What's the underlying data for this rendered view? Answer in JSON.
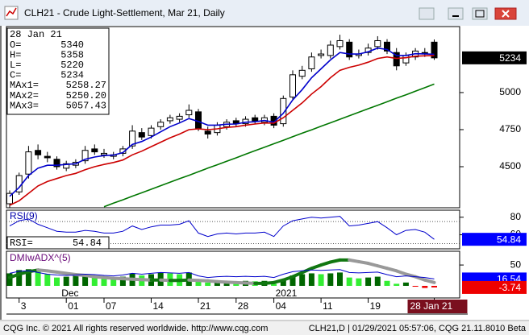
{
  "window": {
    "title": "CLH21 - Crude Light-Settlement, Mar 21, Daily"
  },
  "status": {
    "left": "CQG Inc. © 2021 All rights reserved worldwide. http://www.cqg.com",
    "right": "CLH21,D | 01/29/2021 05:57:06, CQG 21.11.8010 Beta"
  },
  "chart_data": [
    {
      "type": "candlestick",
      "categories": [
        null,
        "3",
        null,
        null,
        null,
        null,
        "01",
        null,
        null,
        null,
        "07",
        null,
        null,
        null,
        null,
        "14",
        null,
        null,
        null,
        null,
        "21",
        null,
        null,
        null,
        "28",
        null,
        null,
        null,
        "04",
        null,
        null,
        null,
        null,
        "11",
        null,
        null,
        null,
        null,
        "19",
        null,
        null,
        null,
        null,
        null,
        null,
        "28 Jan 21"
      ],
      "month_labels": [
        "Dec",
        "2021"
      ],
      "open": [
        4250,
        4330,
        4450,
        4610,
        4570,
        4550,
        4490,
        4510,
        4540,
        4620,
        4580,
        4570,
        4590,
        4640,
        4730,
        4710,
        4770,
        4810,
        4820,
        4850,
        4870,
        4740,
        4730,
        4770,
        4810,
        4790,
        4830,
        4800,
        4840,
        4790,
        4970,
        5110,
        5160,
        5250,
        5250,
        5310,
        5340,
        5250,
        5270,
        5310,
        5340,
        5270,
        5200,
        5240,
        5270,
        5340
      ],
      "high": [
        4340,
        4460,
        4640,
        4650,
        4600,
        4570,
        4540,
        4550,
        4640,
        4650,
        4620,
        4600,
        4640,
        4780,
        4760,
        4780,
        4820,
        4850,
        4860,
        4920,
        4890,
        4770,
        4800,
        4820,
        4830,
        4840,
        4850,
        4850,
        4860,
        4980,
        5150,
        5180,
        5270,
        5290,
        5350,
        5390,
        5360,
        5290,
        5330,
        5380,
        5360,
        5300,
        5270,
        5300,
        5300,
        5358
      ],
      "low": [
        4220,
        4310,
        4420,
        4550,
        4530,
        4480,
        4470,
        4490,
        4520,
        4580,
        4560,
        4550,
        4570,
        4620,
        4680,
        4690,
        4750,
        4790,
        4800,
        4830,
        4740,
        4690,
        4710,
        4750,
        4770,
        4770,
        4790,
        4780,
        4760,
        4770,
        4950,
        5090,
        5140,
        5230,
        5230,
        5290,
        5220,
        5230,
        5250,
        5290,
        5260,
        5150,
        5180,
        5220,
        5240,
        5220
      ],
      "close": [
        4320,
        4440,
        4600,
        4580,
        4560,
        4500,
        4520,
        4530,
        4610,
        4600,
        4590,
        4580,
        4620,
        4740,
        4700,
        4760,
        4800,
        4830,
        4840,
        4880,
        4760,
        4720,
        4780,
        4800,
        4790,
        4820,
        4810,
        4830,
        4780,
        4960,
        5120,
        5150,
        5240,
        5260,
        5320,
        5350,
        5240,
        5260,
        5300,
        5350,
        5280,
        5180,
        5250,
        5280,
        5260,
        5234
      ],
      "up_color": "#ffffff",
      "down_color": "#000000",
      "series": [
        {
          "name": "MAx1=",
          "color": "#0000cc",
          "values": [
            4300,
            4360,
            4440,
            4490,
            4510,
            4510,
            4515,
            4520,
            4550,
            4565,
            4575,
            4578,
            4595,
            4650,
            4670,
            4700,
            4735,
            4770,
            4795,
            4825,
            4805,
            4780,
            4780,
            4787,
            4788,
            4800,
            4803,
            4812,
            4800,
            4860,
            4950,
            5020,
            5100,
            5160,
            5220,
            5270,
            5260,
            5260,
            5275,
            5300,
            5290,
            5250,
            5250,
            5262,
            5261,
            5258.27
          ]
        },
        {
          "name": "MAx2=",
          "color": "#cc0000",
          "values": [
            4240,
            4270,
            4320,
            4370,
            4400,
            4420,
            4440,
            4455,
            4480,
            4500,
            4515,
            4528,
            4545,
            4580,
            4605,
            4635,
            4665,
            4695,
            4720,
            4750,
            4755,
            4750,
            4755,
            4765,
            4770,
            4780,
            4788,
            4795,
            4793,
            4830,
            4880,
            4930,
            4990,
            5040,
            5100,
            5150,
            5170,
            5185,
            5205,
            5230,
            5240,
            5230,
            5235,
            5245,
            5248,
            5250.2
          ],
          "value_labels": [
            null,
            null,
            null,
            null,
            null,
            null,
            null,
            null,
            null,
            null,
            null,
            null,
            null,
            null,
            null,
            null,
            null,
            null,
            null,
            null,
            null,
            null,
            null,
            null,
            null,
            null,
            null,
            null,
            null,
            null,
            null,
            null,
            null,
            null,
            null,
            null,
            null,
            null,
            null,
            null,
            null,
            null,
            null,
            null,
            null,
            "5250.20"
          ]
        },
        {
          "name": "MAx3=",
          "color": "#007700",
          "values": [
            null,
            null,
            null,
            null,
            null,
            null,
            null,
            null,
            null,
            null,
            4230,
            4254,
            4277,
            4301,
            4324,
            4348,
            4372,
            4395,
            4419,
            4442,
            4466,
            4490,
            4513,
            4537,
            4560,
            4584,
            4608,
            4631,
            4655,
            4678,
            4702,
            4726,
            4749,
            4773,
            4796,
            4820,
            4844,
            4867,
            4891,
            4914,
            4938,
            4962,
            4985,
            5009,
            5033,
            5057.43
          ]
        }
      ],
      "info_labels": [
        "O=",
        "H=",
        "L=",
        "C="
      ],
      "ylim": [
        4223,
        5445
      ],
      "yticks": [
        5000,
        4750,
        4500
      ]
    },
    {
      "type": "line",
      "title": "RSI(9)",
      "readout_label": "RSI=",
      "series": [
        {
          "name": "RSI",
          "color": "#0000cc",
          "values": [
            70,
            76,
            78,
            72,
            68,
            64,
            63,
            63,
            65,
            64,
            62,
            62,
            64,
            70,
            66,
            69,
            71,
            71,
            72,
            76,
            62,
            58,
            61,
            62,
            61,
            62,
            62,
            63,
            58,
            70,
            76,
            78,
            80,
            79,
            80,
            81,
            70,
            71,
            73,
            75,
            68,
            60,
            65,
            66,
            63,
            54.84
          ]
        }
      ],
      "ref_lines": [
        75,
        50
      ],
      "ylim": [
        44,
        88
      ],
      "yticks": [
        80,
        60
      ]
    },
    {
      "type": "histogram",
      "title": "DMIwADX^(5)",
      "values": [
        30,
        38,
        40,
        35,
        28,
        20,
        22,
        24,
        28,
        25,
        20,
        18,
        22,
        30,
        25,
        28,
        32,
        30,
        28,
        32,
        15,
        8,
        10,
        12,
        10,
        12,
        11,
        12,
        5,
        15,
        25,
        28,
        30,
        28,
        30,
        32,
        20,
        18,
        20,
        22,
        12,
        5,
        8,
        -2,
        -5,
        -3.74
      ],
      "rise_color": "#006600",
      "fall_color": "#33ee33",
      "negative_color": "#ee0000",
      "series": [
        {
          "name": "ADX",
          "rise_color": "#117711",
          "fall_color": "#999999",
          "values": [
            20,
            28,
            34,
            38,
            36,
            33,
            30,
            27,
            25,
            22,
            20,
            18,
            17,
            16,
            15,
            14,
            14,
            13,
            13,
            14,
            13,
            12,
            10,
            9,
            8,
            7,
            6,
            6,
            8,
            14,
            22,
            32,
            42,
            50,
            57,
            62,
            62,
            58,
            54,
            48,
            42,
            36,
            28,
            22,
            14,
            8
          ]
        },
        {
          "name": "DI",
          "color": "#0000cc",
          "values": [
            30,
            35,
            36,
            32,
            28,
            26,
            25,
            26,
            28,
            27,
            25,
            24,
            26,
            30,
            28,
            30,
            32,
            31,
            30,
            32,
            24,
            20,
            22,
            23,
            22,
            23,
            22,
            23,
            20,
            28,
            34,
            36,
            38,
            37,
            38,
            39,
            32,
            31,
            32,
            33,
            27,
            22,
            24,
            22,
            20,
            16.54
          ]
        }
      ],
      "ylim": [
        -29,
        83
      ],
      "yticks": [
        50
      ]
    }
  ]
}
